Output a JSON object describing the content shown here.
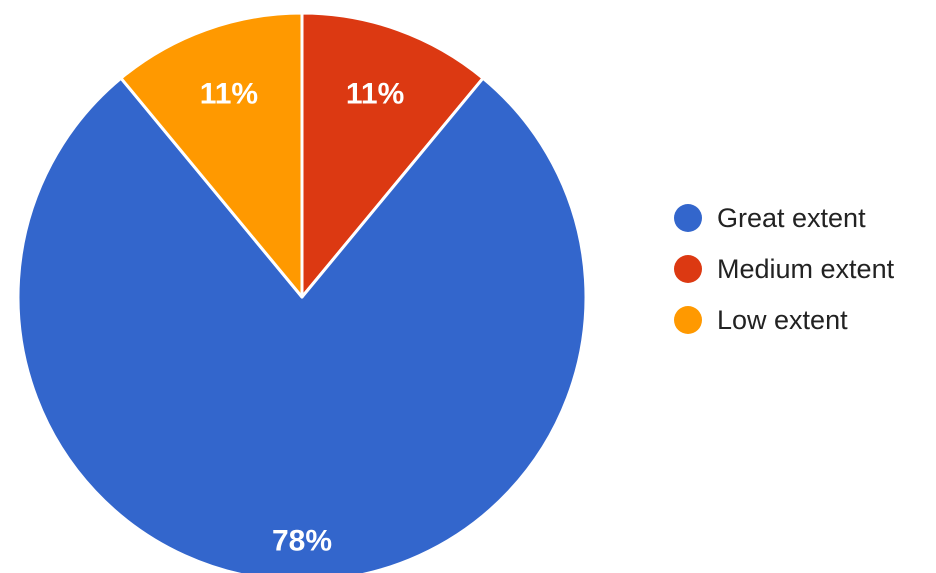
{
  "chart_data": {
    "type": "pie",
    "categories": [
      "Great extent",
      "Medium extent",
      "Low extent"
    ],
    "values": [
      78,
      11,
      11
    ],
    "labels": [
      "78%",
      "11%",
      "11%"
    ],
    "colors": [
      "#3366cc",
      "#dc3912",
      "#ff9900"
    ],
    "legend_position": "right"
  }
}
